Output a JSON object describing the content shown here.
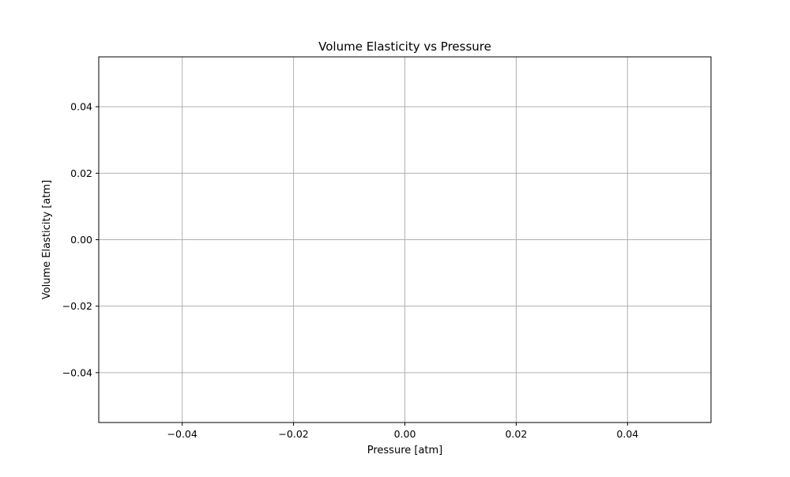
{
  "chart_data": {
    "type": "line",
    "title": "Volume Elasticity vs Pressure",
    "xlabel": "Pressure [atm]",
    "ylabel": "Volume Elasticity [atm]",
    "xlim": [
      -0.055,
      0.055
    ],
    "ylim": [
      -0.055,
      0.055
    ],
    "xticks": [
      -0.04,
      -0.02,
      0.0,
      0.02,
      0.04
    ],
    "xtick_labels": [
      "−0.04",
      "−0.02",
      "0.00",
      "0.02",
      "0.04"
    ],
    "yticks": [
      -0.04,
      -0.02,
      0.0,
      0.02,
      0.04
    ],
    "ytick_labels": [
      "−0.04",
      "−0.02",
      "0.00",
      "0.02",
      "0.04"
    ],
    "grid": true,
    "series": [],
    "colors": {
      "grid": "#b0b0b0",
      "axis": "#000000",
      "background": "#ffffff"
    }
  }
}
